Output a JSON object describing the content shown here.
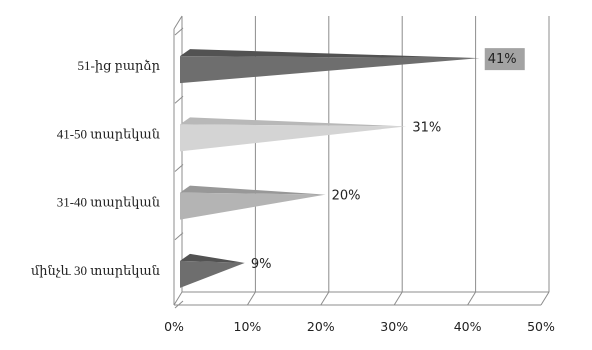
{
  "chart_data": {
    "type": "bar",
    "orientation": "horizontal",
    "style": "3d-pyramid",
    "categories": [
      "51-ից բարձր",
      "41-50 տարեկան",
      "31-40 տարեկան",
      "մինչև 30 տարեկան"
    ],
    "values": [
      41,
      31,
      20,
      9
    ],
    "value_labels": [
      "41%",
      "31%",
      "20%",
      "9%"
    ],
    "colors": [
      "#6e6e6e",
      "#d4d4d4",
      "#b4b4b4",
      "#6e6e6e"
    ],
    "highlight_label_index": 0,
    "xlim": [
      0,
      50
    ],
    "x_ticks": [
      "0%",
      "10%",
      "20%",
      "30%",
      "40%",
      "50%"
    ],
    "grid": true,
    "legend": "none"
  }
}
